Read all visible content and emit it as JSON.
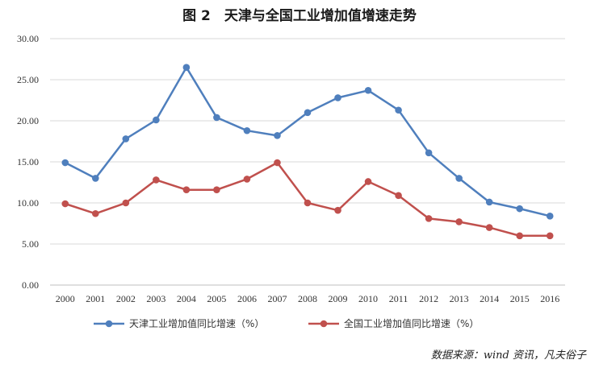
{
  "chart_data": {
    "type": "line",
    "title": "图 2　天津与全国工业增加值增速走势",
    "source": "数据来源：wind 资讯，凡夫俗子",
    "categories": [
      "2000",
      "2001",
      "2002",
      "2003",
      "2004",
      "2005",
      "2006",
      "2007",
      "2008",
      "2009",
      "2010",
      "2011",
      "2012",
      "2013",
      "2014",
      "2015",
      "2016"
    ],
    "ylim": [
      0,
      30
    ],
    "yticks": [
      "0.00",
      "5.00",
      "10.00",
      "15.00",
      "20.00",
      "25.00",
      "30.00"
    ],
    "grid": true,
    "legend_position": "bottom",
    "series": [
      {
        "name": "天津工业增加值同比增速（%）",
        "color": "#4f7fbd",
        "values": [
          14.9,
          13.0,
          17.8,
          20.1,
          26.5,
          20.4,
          18.8,
          18.2,
          21.0,
          22.8,
          23.7,
          21.3,
          16.1,
          13.0,
          10.1,
          9.3,
          8.4
        ]
      },
      {
        "name": "全国工业增加值同比增速（%）",
        "color": "#c0504d",
        "values": [
          9.9,
          8.7,
          10.0,
          12.8,
          11.6,
          11.6,
          12.9,
          14.9,
          10.0,
          9.1,
          12.6,
          10.9,
          8.1,
          7.7,
          7.0,
          6.0,
          6.0
        ]
      }
    ]
  }
}
